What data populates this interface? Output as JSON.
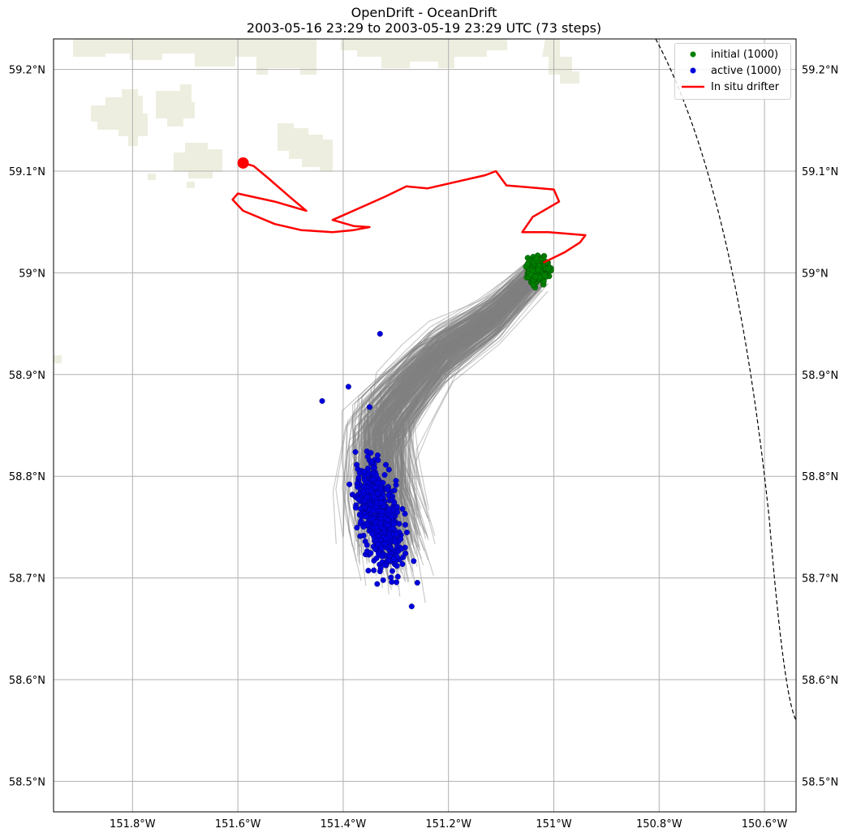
{
  "title": {
    "line1": "OpenDrift - OceanDrift",
    "line2": "2003-05-16 23:29 to 2003-05-19 23:29 UTC (73 steps)"
  },
  "colors": {
    "land": "#eeeee0",
    "grid": "#b0b0b0",
    "initial": "#008000",
    "active": "#0000dd",
    "trajectory": "#808080",
    "drifter": "#ff0000",
    "boundary": "#000000"
  },
  "legend": {
    "placement": "upper right",
    "items": [
      {
        "label": "initial (1000)",
        "symbol": "dot",
        "color": "#008000"
      },
      {
        "label": "active (1000)",
        "symbol": "dot",
        "color": "#0000dd"
      },
      {
        "label": "In situ drifter",
        "symbol": "line",
        "color": "#ff0000"
      }
    ]
  },
  "axes": {
    "lon_ticks": [
      "151.8°W",
      "151.6°W",
      "151.4°W",
      "151.2°W",
      "151°W",
      "150.8°W",
      "150.6°W"
    ],
    "lat_ticks": [
      "59.2°N",
      "59.1°N",
      "59°N",
      "58.9°N",
      "58.8°N",
      "58.7°N",
      "58.6°N",
      "58.5°N"
    ]
  },
  "chart_data": {
    "type": "scatter",
    "title": "OpenDrift - OceanDrift",
    "subtitle": "2003-05-16 23:29 to 2003-05-19 23:29 UTC (73 steps)",
    "xlim": [
      -151.95,
      -150.54
    ],
    "ylim": [
      58.47,
      59.23
    ],
    "grid": true,
    "legend_placement": "top-right",
    "series": [
      {
        "name": "initial (1000)",
        "kind": "points",
        "count": 1000,
        "center": [
          -151.03,
          59.003
        ],
        "spread": [
          0.018,
          0.012
        ]
      },
      {
        "name": "active (1000)",
        "kind": "points",
        "count": 1000,
        "center": [
          -151.33,
          58.76
        ],
        "spread": [
          0.05,
          0.045
        ]
      },
      {
        "name": "In situ drifter",
        "kind": "line",
        "x": [
          -151.02,
          -150.98,
          -150.95,
          -150.94,
          -151.01,
          -151.02,
          -151.06,
          -151.04,
          -150.99,
          -151.0,
          -151.09,
          -151.11,
          -151.13,
          -151.24,
          -151.28,
          -151.32,
          -151.42,
          -151.38,
          -151.35,
          -151.38,
          -151.42,
          -151.48,
          -151.53,
          -151.59,
          -151.61,
          -151.6,
          -151.53,
          -151.47,
          -151.5,
          -151.54,
          -151.57,
          -151.59
        ],
        "y": [
          59.01,
          59.02,
          59.03,
          59.037,
          59.04,
          59.04,
          59.04,
          59.055,
          59.07,
          59.082,
          59.086,
          59.1,
          59.096,
          59.083,
          59.085,
          59.075,
          59.052,
          59.046,
          59.045,
          59.042,
          59.04,
          59.042,
          59.048,
          59.061,
          59.072,
          59.078,
          59.07,
          59.061,
          59.074,
          59.092,
          59.105,
          59.108
        ],
        "start_marker": [
          -151.59,
          59.108
        ]
      }
    ]
  }
}
